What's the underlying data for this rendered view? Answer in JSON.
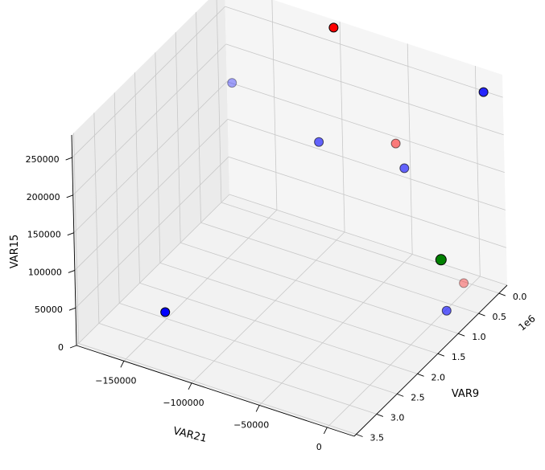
{
  "chart_data": {
    "type": "scatter",
    "projection": "3d",
    "title": "",
    "axes": {
      "x": {
        "label": "VAR9",
        "range": [
          -0.2,
          3.55
        ],
        "ticks": [
          0.0,
          0.5,
          1.0,
          1.5,
          2.0,
          2.5,
          3.0,
          3.5
        ],
        "tick_labels": [
          "0.0",
          "0.5",
          "1.0",
          "1.5",
          "2.0",
          "2.5",
          "3.0",
          "3.5"
        ],
        "offset_text": "1e6"
      },
      "y": {
        "label": "VAR21",
        "range": [
          -185000,
          20000
        ],
        "ticks": [
          -150000,
          -100000,
          -50000,
          0
        ],
        "tick_labels": [
          "−150000",
          "−100000",
          "−50000",
          "0"
        ]
      },
      "z": {
        "label": "VAR15",
        "range": [
          0,
          280000
        ],
        "ticks": [
          0,
          50000,
          100000,
          150000,
          200000,
          250000
        ],
        "tick_labels": [
          "0",
          "50000",
          "100000",
          "150000",
          "200000",
          "250000"
        ]
      }
    },
    "grid": true,
    "points": [
      {
        "x": 3500000,
        "y": -120000,
        "z": 80000,
        "color": "#0000ff",
        "alpha": 1.0
      },
      {
        "x": -50000,
        "y": -100000,
        "z": 280000,
        "color": "#ff0000",
        "alpha": 1.0
      },
      {
        "x": 100000,
        "y": 15000,
        "z": 270000,
        "color": "#0000ff",
        "alpha": 0.85
      },
      {
        "x": 0,
        "y": -175000,
        "z": 165000,
        "color": "#0000ff",
        "alpha": 0.35
      },
      {
        "x": 850000,
        "y": -85000,
        "z": 185000,
        "color": "#0000ff",
        "alpha": 0.6
      },
      {
        "x": 620000,
        "y": -35000,
        "z": 200000,
        "color": "#ff0000",
        "alpha": 0.5
      },
      {
        "x": 750000,
        "y": -25000,
        "z": 180000,
        "color": "#0000ff",
        "alpha": 0.6
      },
      {
        "x": 1050000,
        "y": 10000,
        "z": 95000,
        "color": "#008000",
        "alpha": 1.0,
        "size": "large"
      },
      {
        "x": 1000000,
        "y": 25000,
        "z": 70000,
        "color": "#ff0000",
        "alpha": 0.35
      },
      {
        "x": 1200000,
        "y": 18000,
        "z": 40000,
        "color": "#0000ff",
        "alpha": 0.6
      }
    ]
  }
}
